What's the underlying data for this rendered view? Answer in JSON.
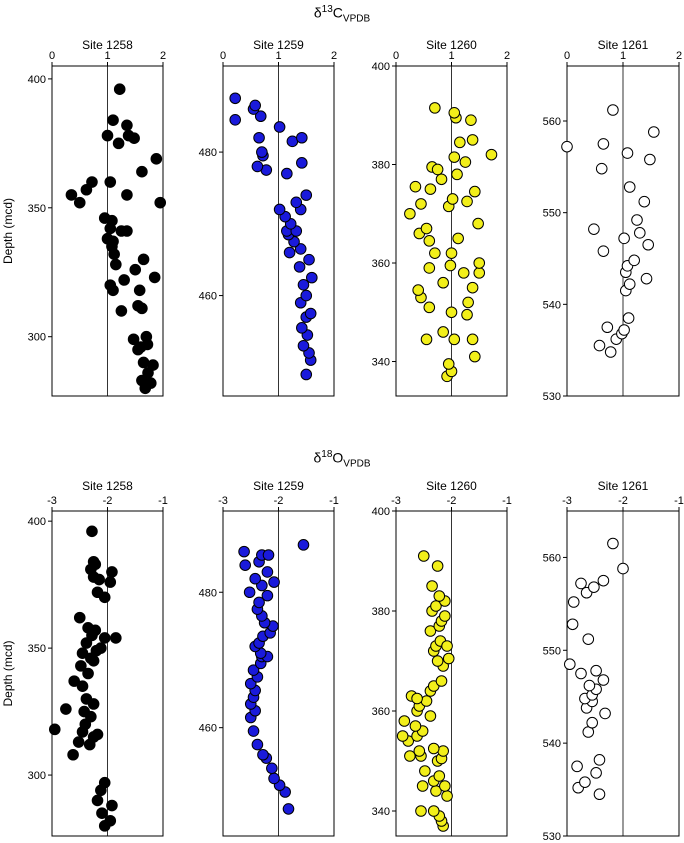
{
  "titles": {
    "carbon": {
      "prefix": "δ",
      "sup": "13",
      "main": "C",
      "sub": "VPDB"
    },
    "oxygen": {
      "prefix": "δ",
      "sup": "18",
      "main": "O",
      "sub": "VPDB"
    }
  },
  "ylabel": "Depth (mcd)",
  "chart_data": [
    {
      "type": "scatter",
      "group": "carbon",
      "site": "Site 1258",
      "fill": "#000000",
      "xlim": [
        0,
        2
      ],
      "xticks": [
        0,
        1,
        2
      ],
      "ylim": [
        405,
        277
      ],
      "yticks": [
        300,
        350,
        400
      ],
      "reference_x": 1,
      "ylabel": "Depth (mcd)",
      "x": [
        1.68,
        1.62,
        1.78,
        1.73,
        1.65,
        1.82,
        1.55,
        1.6,
        1.72,
        1.47,
        1.7,
        1.25,
        1.55,
        1.62,
        1.1,
        1.05,
        1.58,
        1.3,
        1.15,
        1.85,
        1.12,
        1.5,
        1.65,
        1.08,
        1.1,
        1.0,
        1.35,
        1.05,
        1.08,
        0.95,
        1.25,
        0.5,
        1.95,
        0.35,
        0.62,
        1.35,
        1.05,
        0.72,
        1.62,
        1.88,
        1.2,
        1.48,
        1.0,
        1.38,
        1.35,
        1.1,
        1.22
      ],
      "y": [
        280,
        283,
        282,
        286,
        290,
        289,
        295,
        296,
        297,
        299,
        300,
        310,
        312,
        311,
        318,
        320,
        318,
        322,
        328,
        323,
        332,
        326,
        330,
        335,
        337,
        338,
        341,
        342,
        345,
        346,
        341,
        352,
        352,
        355,
        357,
        355,
        360,
        360,
        364,
        369,
        375,
        377,
        378,
        378,
        382,
        384,
        396
      ]
    },
    {
      "type": "scatter",
      "group": "carbon",
      "site": "Site 1259",
      "fill": "#1a1adb",
      "xlim": [
        0,
        2
      ],
      "xticks": [
        0,
        1,
        2
      ],
      "ylim": [
        492,
        446
      ],
      "yticks": [
        460,
        480
      ],
      "reference_x": 1,
      "x": [
        1.5,
        1.58,
        1.55,
        1.45,
        1.52,
        1.42,
        1.5,
        1.58,
        1.4,
        1.5,
        1.45,
        1.6,
        1.38,
        1.55,
        1.2,
        1.4,
        1.28,
        1.18,
        1.15,
        1.32,
        1.22,
        1.12,
        1.02,
        1.4,
        1.32,
        1.5,
        0.78,
        1.15,
        0.62,
        1.42,
        0.72,
        0.7,
        0.65,
        1.25,
        1.42,
        1.02,
        0.22,
        0.68,
        0.55,
        0.58,
        0.22
      ],
      "y": [
        449,
        451,
        452,
        453,
        454.5,
        455.5,
        457,
        457.5,
        459,
        460,
        461.5,
        462.5,
        464,
        465,
        466,
        466.5,
        467.5,
        468.5,
        469,
        469,
        470,
        471,
        472,
        472,
        473,
        474,
        477.5,
        477,
        478,
        478.5,
        479.5,
        480,
        482,
        481.5,
        482,
        483.5,
        484.5,
        485,
        486,
        486.5,
        487.5
      ]
    },
    {
      "type": "scatter",
      "group": "carbon",
      "site": "Site 1260",
      "fill": "#f2ef1a",
      "xlim": [
        0,
        2
      ],
      "xticks": [
        0,
        1,
        2
      ],
      "ylim": [
        400,
        333
      ],
      "yticks": [
        340,
        360,
        380,
        400
      ],
      "reference_x": 1,
      "x": [
        0.92,
        1.0,
        0.95,
        1.42,
        0.55,
        1.05,
        1.38,
        0.85,
        1.28,
        0.6,
        1.0,
        1.3,
        0.45,
        0.4,
        1.38,
        1.5,
        0.85,
        1.22,
        0.6,
        0.98,
        1.5,
        0.7,
        1.0,
        0.42,
        0.6,
        1.12,
        1.48,
        0.55,
        0.25,
        0.95,
        0.45,
        1.28,
        1.02,
        0.62,
        1.42,
        0.35,
        0.82,
        1.1,
        0.65,
        1.25,
        1.05,
        0.75,
        1.72,
        1.15,
        1.38,
        1.35,
        1.08,
        1.05,
        0.7
      ],
      "y": [
        337,
        338,
        339.5,
        341,
        344.5,
        344.5,
        344.5,
        346,
        349.5,
        351,
        350,
        352,
        353,
        354.5,
        355,
        358,
        356,
        358,
        359,
        359.5,
        360,
        362,
        362,
        366,
        364.5,
        365,
        368,
        367,
        370,
        371.5,
        372,
        372.5,
        373,
        375,
        374.5,
        375.5,
        377,
        378,
        379.5,
        380.5,
        381.5,
        379,
        382,
        384.5,
        385,
        389,
        389.5,
        390.5,
        391.5
      ]
    },
    {
      "type": "scatter",
      "group": "carbon",
      "site": "Site 1261",
      "fill": "#ffffff",
      "xlim": [
        0,
        2
      ],
      "xticks": [
        0,
        1,
        2
      ],
      "ylim": [
        566,
        530
      ],
      "yticks": [
        530,
        540,
        550,
        560
      ],
      "reference_x": 1,
      "x": [
        0.78,
        0.58,
        0.88,
        0.98,
        0.72,
        1.02,
        1.1,
        1.05,
        1.12,
        1.42,
        1.05,
        1.08,
        1.2,
        1.45,
        1.3,
        0.65,
        1.02,
        0.48,
        1.25,
        1.38,
        1.12,
        0.62,
        1.48,
        1.08,
        0.0,
        0.65,
        1.55,
        0.82
      ],
      "y": [
        534.8,
        535.5,
        536.2,
        536.8,
        537.5,
        537.2,
        538.5,
        541.5,
        542.2,
        542.8,
        543.5,
        544.2,
        544.8,
        546.5,
        547.8,
        545.8,
        547.2,
        548.2,
        549.2,
        551.2,
        552.8,
        554.8,
        555.8,
        556.5,
        557.2,
        557.5,
        558.8,
        561.2
      ]
    },
    {
      "type": "scatter",
      "group": "oxygen",
      "site": "Site 1258",
      "fill": "#000000",
      "xlim": [
        -3,
        -1
      ],
      "xticks": [
        -3,
        -2,
        -1
      ],
      "ylim": [
        404,
        276
      ],
      "yticks": [
        300,
        350,
        400
      ],
      "reference_x": -2,
      "x": [
        -2.05,
        -1.95,
        -2.1,
        -1.92,
        -2.18,
        -2.12,
        -2.05,
        -2.62,
        -2.32,
        -2.52,
        -2.25,
        -2.45,
        -2.18,
        -2.95,
        -2.4,
        -2.3,
        -2.75,
        -2.42,
        -2.25,
        -2.38,
        -2.45,
        -2.6,
        -2.35,
        -2.48,
        -2.3,
        -2.25,
        -2.45,
        -2.12,
        -2.2,
        -2.38,
        -2.05,
        -2.28,
        -1.85,
        -2.22,
        -2.35,
        -2.5,
        -2.05,
        -2.18,
        -1.95,
        -2.15,
        -2.25,
        -1.92,
        -2.3,
        -2.22,
        -2.25,
        -2.28
      ],
      "y": [
        280,
        282,
        285,
        288,
        290,
        294,
        297,
        308,
        312,
        313,
        315,
        317,
        316,
        318,
        320,
        323,
        326,
        325,
        328,
        330,
        335,
        337,
        340,
        343,
        346,
        345,
        348,
        350,
        349,
        352,
        354,
        355,
        354,
        357,
        358,
        362,
        370,
        372,
        376,
        377,
        378,
        380,
        381,
        383,
        384,
        396
      ]
    },
    {
      "type": "scatter",
      "group": "oxygen",
      "site": "Site 1259",
      "fill": "#1a1adb",
      "xlim": [
        -3,
        -1
      ],
      "xticks": [
        -3,
        -2,
        -1
      ],
      "ylim": [
        492,
        444
      ],
      "yticks": [
        460,
        480
      ],
      "reference_x": -2,
      "x": [
        -1.82,
        -1.88,
        -1.98,
        -2.08,
        -2.12,
        -2.22,
        -2.28,
        -2.38,
        -2.45,
        -2.5,
        -2.42,
        -2.5,
        -2.45,
        -2.42,
        -2.5,
        -2.38,
        -2.45,
        -2.32,
        -2.3,
        -2.2,
        -2.32,
        -2.42,
        -2.35,
        -2.28,
        -2.15,
        -2.1,
        -2.25,
        -2.3,
        -2.38,
        -2.35,
        -2.2,
        -2.52,
        -2.3,
        -2.08,
        -2.42,
        -2.2,
        -2.6,
        -2.35,
        -2.3,
        -2.18,
        -2.62,
        -1.55
      ],
      "y": [
        448,
        450.5,
        451.5,
        452.5,
        454,
        455.5,
        456,
        457.5,
        459.5,
        461.5,
        462.5,
        463.5,
        464.5,
        465.5,
        466.5,
        467.5,
        468.5,
        469.5,
        470.5,
        470.5,
        471,
        472,
        472.5,
        473.5,
        474,
        475,
        475.5,
        476.5,
        477.5,
        478.5,
        479.5,
        480,
        481,
        481.5,
        482,
        483,
        484,
        484.5,
        485.5,
        485.5,
        486,
        487
      ]
    },
    {
      "type": "scatter",
      "group": "oxygen",
      "site": "Site 1260",
      "fill": "#f2ef1a",
      "xlim": [
        -3,
        -1
      ],
      "xticks": [
        -3,
        -2,
        -1
      ],
      "ylim": [
        400,
        335
      ],
      "yticks": [
        340,
        360,
        380,
        400
      ],
      "reference_x": -2,
      "x": [
        -2.15,
        -2.18,
        -2.22,
        -2.32,
        -2.55,
        -2.08,
        -2.28,
        -2.12,
        -2.52,
        -2.32,
        -2.22,
        -2.48,
        -2.25,
        -2.18,
        -2.55,
        -2.15,
        -2.32,
        -2.75,
        -2.58,
        -2.78,
        -2.62,
        -2.88,
        -2.52,
        -2.85,
        -2.65,
        -2.62,
        -2.38,
        -2.58,
        -2.72,
        -2.45,
        -2.62,
        -2.38,
        -2.32,
        -2.18,
        -2.15,
        -2.25,
        -2.05,
        -2.32,
        -2.28,
        -2.2,
        -2.08,
        -2.38,
        -2.22,
        -2.18,
        -2.12,
        -2.35,
        -2.28,
        -2.12,
        -2.22,
        -2.35,
        -2.25,
        -2.5
      ],
      "y": [
        337,
        338,
        339,
        340,
        340,
        343,
        344,
        345,
        345,
        346,
        347,
        348,
        350,
        350.5,
        351,
        352,
        352.5,
        351,
        352,
        354,
        355,
        355,
        356,
        358,
        357,
        360,
        359,
        361,
        363,
        362,
        362.5,
        364,
        365,
        366,
        369,
        370,
        370.5,
        372,
        373,
        374,
        373,
        376,
        377,
        378,
        379,
        380,
        381,
        382,
        383,
        385,
        389,
        391
      ]
    },
    {
      "type": "scatter",
      "group": "oxygen",
      "site": "Site 1261",
      "fill": "#ffffff",
      "xlim": [
        -3,
        -1
      ],
      "xticks": [
        -3,
        -2,
        -1
      ],
      "ylim": [
        565,
        530
      ],
      "yticks": [
        530,
        540,
        550,
        560
      ],
      "reference_x": -2,
      "x": [
        -2.42,
        -2.8,
        -2.68,
        -2.48,
        -2.82,
        -2.42,
        -2.62,
        -2.55,
        -2.32,
        -2.65,
        -2.55,
        -2.68,
        -2.55,
        -2.48,
        -2.6,
        -2.35,
        -2.75,
        -2.48,
        -2.95,
        -2.62,
        -2.9,
        -2.88,
        -2.65,
        -2.52,
        -2.75,
        -2.35,
        -2.0,
        -2.18
      ],
      "y": [
        534.5,
        535.2,
        535.8,
        536.8,
        537.5,
        538.2,
        541.2,
        542.2,
        543.2,
        543.8,
        544.5,
        544.8,
        545.2,
        545.8,
        546.2,
        546.8,
        547.5,
        547.8,
        548.5,
        551.2,
        552.8,
        555.2,
        556.2,
        556.8,
        557.2,
        557.5,
        558.8,
        561.5
      ]
    }
  ]
}
